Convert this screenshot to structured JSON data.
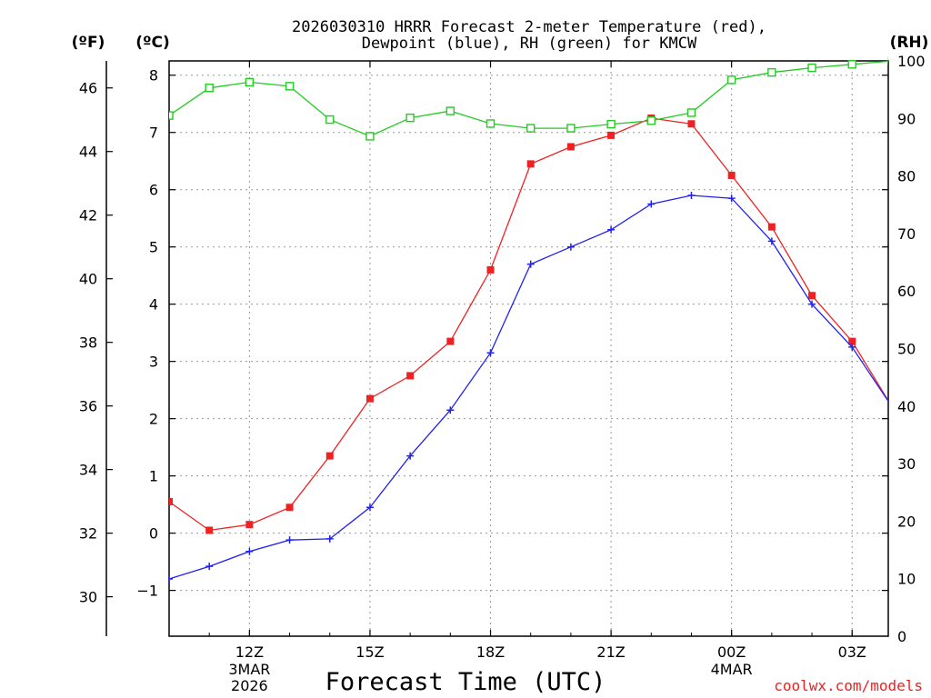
{
  "chart_data": {
    "type": "line",
    "title_line1": "2026030310 HRRR Forecast 2-meter Temperature (red),",
    "title_line2": "Dewpoint (blue), RH (green) for KMCW",
    "xlabel": "Forecast Time (UTC)",
    "unit_f": "(ºF)",
    "unit_c": "(ºC)",
    "unit_rh": "(RH)",
    "credit": "coolwx.com/models",
    "x_hours": [
      10,
      11,
      12,
      13,
      14,
      15,
      16,
      17,
      18,
      19,
      20,
      21,
      22,
      23,
      24,
      25,
      26,
      27,
      28
    ],
    "xlim": [
      10,
      27.9
    ],
    "x_ticks": [
      {
        "hour": 12,
        "label": "12Z",
        "sub1": "3MAR",
        "sub2": "2026"
      },
      {
        "hour": 15,
        "label": "15Z",
        "sub1": "",
        "sub2": ""
      },
      {
        "hour": 18,
        "label": "18Z",
        "sub1": "",
        "sub2": ""
      },
      {
        "hour": 21,
        "label": "21Z",
        "sub1": "",
        "sub2": ""
      },
      {
        "hour": 24,
        "label": "00Z",
        "sub1": "4MAR",
        "sub2": ""
      },
      {
        "hour": 27,
        "label": "03Z",
        "sub1": "",
        "sub2": ""
      }
    ],
    "ylim_c": [
      -1.8,
      8.25
    ],
    "y_ticks_c": [
      -1,
      0,
      1,
      2,
      3,
      4,
      5,
      6,
      7,
      8
    ],
    "y_ticks_f": [
      30,
      32,
      34,
      36,
      38,
      40,
      42,
      44,
      46
    ],
    "ylim_rh": [
      0,
      100
    ],
    "y_ticks_rh": [
      0,
      10,
      20,
      30,
      40,
      50,
      60,
      70,
      80,
      90,
      100
    ],
    "series": [
      {
        "name": "Temperature",
        "unit": "C",
        "color": "#ee2222",
        "values": [
          0.55,
          0.05,
          0.15,
          0.45,
          1.35,
          2.35,
          2.75,
          3.35,
          4.6,
          6.45,
          6.75,
          6.95,
          7.25,
          7.15,
          6.25,
          5.35,
          4.15,
          3.35,
          2.2
        ]
      },
      {
        "name": "Dewpoint",
        "unit": "C",
        "color": "#2222ee",
        "values": [
          -0.8,
          -0.58,
          -0.32,
          -0.12,
          -0.1,
          0.45,
          1.35,
          2.15,
          3.15,
          4.7,
          5.0,
          5.3,
          5.75,
          5.9,
          5.85,
          5.1,
          4.0,
          3.25,
          2.2
        ]
      },
      {
        "name": "RH",
        "unit": "%",
        "color": "#22cc22",
        "values": [
          90.5,
          95.3,
          96.3,
          95.6,
          89.8,
          86.9,
          90.1,
          91.3,
          89.1,
          88.3,
          88.3,
          89.0,
          89.6,
          91.0,
          96.7,
          98.0,
          98.8,
          99.4,
          100.0
        ]
      }
    ]
  }
}
